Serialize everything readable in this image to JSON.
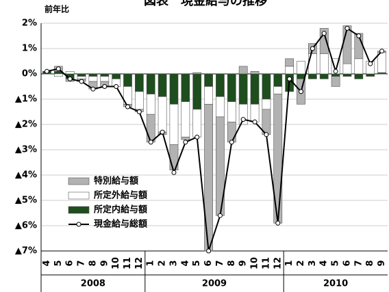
{
  "chart_data": {
    "type": "bar",
    "title": "図表　現金給与の推移",
    "y_label": "前年比",
    "categories": [
      "4",
      "5",
      "6",
      "7",
      "8",
      "9",
      "10",
      "11",
      "12",
      "1",
      "2",
      "3",
      "4",
      "5",
      "6",
      "7",
      "8",
      "9",
      "10",
      "11",
      "12",
      "1",
      "2",
      "3",
      "4",
      "5",
      "6",
      "7",
      "8",
      "9"
    ],
    "years": [
      "2008",
      "2009",
      "2010"
    ],
    "series": [
      {
        "name": "特別給与額",
        "color": "#b2b2b2",
        "values": [
          0,
          0.2,
          -0.1,
          -0.1,
          -0.3,
          -0.2,
          0,
          -0.1,
          -0.1,
          -1.1,
          -0.1,
          -1.0,
          -0.1,
          0.05,
          -5.8,
          -3.9,
          -0.8,
          0.3,
          0.1,
          -1.0,
          -5.1,
          0.3,
          -1.0,
          0.4,
          1.0,
          -0.4,
          1.5,
          1.0,
          0,
          0.05
        ]
      },
      {
        "name": "所定外給与額",
        "color": "#ffffff",
        "values": [
          0,
          -0.1,
          0.1,
          -0.1,
          -0.2,
          -0.2,
          -0.3,
          -0.7,
          -0.7,
          -0.8,
          -1.4,
          -1.6,
          -1.4,
          -1.1,
          -0.7,
          -0.8,
          -0.8,
          -0.8,
          -0.7,
          -0.4,
          -0.3,
          0.3,
          0.5,
          0.8,
          0.8,
          0.6,
          0.4,
          0.6,
          0.5,
          0.8
        ]
      },
      {
        "name": "所定内給与額",
        "color": "#1e4d1e",
        "values": [
          0.1,
          0.1,
          -0.2,
          -0.1,
          -0.1,
          -0.1,
          -0.2,
          -0.5,
          -0.7,
          -0.8,
          -0.9,
          -1.2,
          -1.1,
          -1.4,
          -0.5,
          -0.9,
          -1.1,
          -1.2,
          -1.2,
          -1.0,
          -0.5,
          -0.7,
          -0.2,
          -0.2,
          -0.2,
          -0.1,
          -0.1,
          -0.2,
          -0.1,
          0.05
        ]
      },
      {
        "name": "現金給与総額",
        "type": "line",
        "color": "#000000",
        "values": [
          0.1,
          0.2,
          -0.2,
          -0.3,
          -0.6,
          -0.5,
          -0.5,
          -1.3,
          -1.5,
          -2.7,
          -2.3,
          -3.9,
          -2.7,
          -2.5,
          -7.0,
          -5.6,
          -2.7,
          -1.8,
          -1.9,
          -2.4,
          -5.9,
          -0.2,
          -0.7,
          1.0,
          1.6,
          0.1,
          1.8,
          1.5,
          0.4,
          0.9
        ]
      }
    ],
    "ylim": [
      -7,
      2
    ],
    "yticks": [
      {
        "value": 2,
        "label": "2%"
      },
      {
        "value": 1,
        "label": "1%"
      },
      {
        "value": 0,
        "label": "0%"
      },
      {
        "value": -1,
        "label": "▲1%"
      },
      {
        "value": -2,
        "label": "▲2%"
      },
      {
        "value": -3,
        "label": "▲3%"
      },
      {
        "value": -4,
        "label": "▲4%"
      },
      {
        "value": -5,
        "label": "▲5%"
      },
      {
        "value": -6,
        "label": "▲6%"
      },
      {
        "value": -7,
        "label": "▲7%"
      }
    ],
    "grid": true
  }
}
